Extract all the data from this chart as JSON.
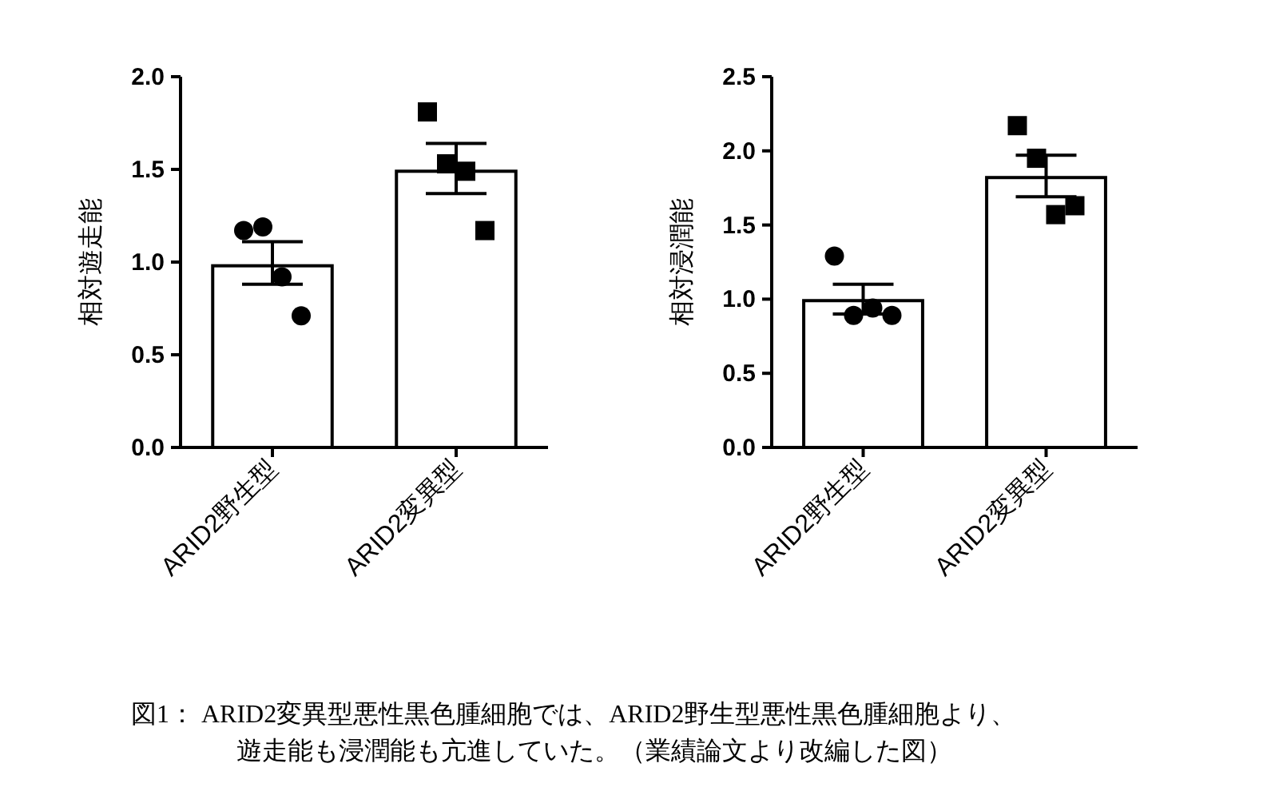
{
  "chart_data": [
    {
      "type": "bar",
      "ylabel": "相対遊走能",
      "categories": [
        "ARID2野生型",
        "ARID2変異型"
      ],
      "ylim": [
        0,
        2.0
      ],
      "yticks": [
        {
          "value": 0,
          "label": "0.0"
        },
        {
          "value": 0.5,
          "label": "0.5"
        },
        {
          "value": 1,
          "label": "1.0"
        },
        {
          "value": 1.5,
          "label": "1.5"
        },
        {
          "value": 2,
          "label": "2.0"
        }
      ],
      "grid": false,
      "series": [
        {
          "type": "bar",
          "color": "#ffffff",
          "values": [
            0.98,
            1.49
          ],
          "errors": [
            [
              0.88,
              1.11
            ],
            [
              1.37,
              1.64
            ]
          ]
        },
        {
          "type": "scatter",
          "color": "#000000",
          "marker": "circle",
          "x": [
            "ARID2野生型",
            "ARID2野生型",
            "ARID2野生型",
            "ARID2野生型"
          ],
          "values": [
            1.17,
            1.19,
            0.92,
            0.71
          ]
        },
        {
          "type": "scatter",
          "color": "#000000",
          "marker": "square",
          "x": [
            "ARID2変異型",
            "ARID2変異型",
            "ARID2変異型",
            "ARID2変異型"
          ],
          "values": [
            1.81,
            1.53,
            1.49,
            1.17
          ]
        }
      ]
    },
    {
      "type": "bar",
      "ylabel": "相対浸潤能",
      "categories": [
        "ARID2野生型",
        "ARID2変異型"
      ],
      "ylim": [
        0,
        2.5
      ],
      "yticks": [
        {
          "value": 0,
          "label": "0.0"
        },
        {
          "value": 0.5,
          "label": "0.5"
        },
        {
          "value": 1,
          "label": "1.0"
        },
        {
          "value": 1.5,
          "label": "1.5"
        },
        {
          "value": 2,
          "label": "2.0"
        },
        {
          "value": 2.5,
          "label": "2.5"
        }
      ],
      "grid": false,
      "annotations": [
        "図1： ARID2変異型悪性黒色腫細胞では、ARID2野生型悪性黒色腫細胞より、",
        "遊走能も浸潤能も亢進していた。（業績論文より改編した図）"
      ],
      "series": [
        {
          "type": "bar",
          "color": "#ffffff",
          "values": [
            0.99,
            1.82
          ],
          "errors": [
            [
              0.9,
              1.1
            ],
            [
              1.69,
              1.97
            ]
          ]
        },
        {
          "type": "scatter",
          "color": "#000000",
          "marker": "circle",
          "x": [
            "ARID2野生型",
            "ARID2野生型",
            "ARID2野生型",
            "ARID2野生型"
          ],
          "values": [
            1.29,
            0.89,
            0.94,
            0.89
          ]
        },
        {
          "type": "scatter",
          "color": "#000000",
          "marker": "square",
          "x": [
            "ARID2変異型",
            "ARID2変異型",
            "ARID2変異型",
            "ARID2変異型"
          ],
          "values": [
            2.17,
            1.95,
            1.57,
            1.63
          ]
        }
      ]
    }
  ]
}
